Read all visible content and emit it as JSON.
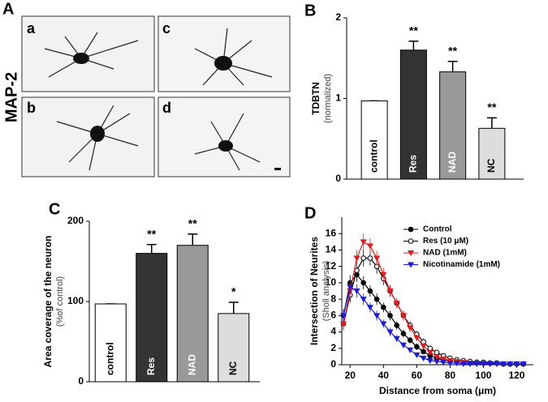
{
  "figure": {
    "panel_a": {
      "label": "A",
      "stain": "MAP-2",
      "images": [
        "a",
        "b",
        "c",
        "d"
      ]
    }
  },
  "chart_data": [
    {
      "type": "bar",
      "panel": "B",
      "y_label": "TDBTN",
      "y_sublabel": "(normalized)",
      "categories": [
        "control",
        "Res",
        "NAD",
        "NC"
      ],
      "values": [
        0.97,
        1.6,
        1.33,
        0.63
      ],
      "errors": [
        0,
        0.11,
        0.13,
        0.13
      ],
      "annotations": [
        null,
        "**",
        "**",
        "**"
      ],
      "colors": [
        "#ffffff",
        "#333333",
        "#999999",
        "#dddddd"
      ],
      "ylim": [
        0,
        2
      ],
      "yticks": [
        0,
        1,
        2
      ]
    },
    {
      "type": "bar",
      "panel": "C",
      "y_label": "Area coverage of the neuron",
      "y_sublabel": "(%of control)",
      "categories": [
        "control",
        "Res",
        "NAD",
        "NC"
      ],
      "values": [
        97,
        160,
        170,
        85
      ],
      "errors": [
        0,
        11,
        14,
        14
      ],
      "annotations": [
        null,
        "**",
        "**",
        "*"
      ],
      "colors": [
        "#ffffff",
        "#333333",
        "#999999",
        "#dddddd"
      ],
      "ylim": [
        0,
        200
      ],
      "yticks": [
        0,
        100,
        200
      ]
    },
    {
      "type": "line",
      "panel": "D",
      "y_label": "Intersection of Neurites",
      "y_sublabel": "(Sholl analysis)",
      "x_label": "Distance from soma (μm)",
      "x": [
        16,
        20,
        24,
        28,
        32,
        36,
        40,
        44,
        48,
        52,
        56,
        60,
        64,
        68,
        72,
        76,
        80,
        84,
        88,
        92,
        96,
        100,
        104,
        108,
        112,
        116,
        120,
        124
      ],
      "series": [
        {
          "name": "Control",
          "color": "#000000",
          "marker": "circle",
          "values": [
            6,
            10,
            11,
            10,
            9,
            8,
            7,
            6,
            4.8,
            3.8,
            3,
            2.2,
            1.6,
            1.1,
            0.8,
            0.6,
            0.5,
            0.4,
            0.3,
            0.3,
            0.3,
            0.2,
            0.2,
            0.2,
            0.1,
            0.1,
            0.1,
            0.1
          ],
          "errors": [
            0.8,
            0.9,
            0.9,
            0.8,
            0.7,
            0.7,
            0.6,
            0.6,
            0.5,
            0.5,
            0.4,
            0.4,
            0.3,
            0.3,
            0.2,
            0.2,
            0.2,
            0.2,
            0.1,
            0.1,
            0.1,
            0.1,
            0.1,
            0.1,
            0.1,
            0.1,
            0.1,
            0.1
          ]
        },
        {
          "name": "Res (10 μM)",
          "color": "#000000",
          "marker": "open-circle",
          "values": [
            5,
            8.5,
            11.5,
            13,
            13,
            12,
            10.5,
            9,
            7.5,
            6,
            4.8,
            3.7,
            2.8,
            2,
            1.5,
            1.1,
            0.8,
            0.6,
            0.5,
            0.4,
            0.3,
            0.3,
            0.2,
            0.2,
            0.1,
            0.1,
            0.1,
            0.1
          ],
          "errors": [
            0.8,
            0.9,
            1,
            1,
            0.9,
            0.9,
            0.8,
            0.7,
            0.6,
            0.6,
            0.5,
            0.4,
            0.4,
            0.3,
            0.3,
            0.2,
            0.2,
            0.2,
            0.1,
            0.1,
            0.1,
            0.1,
            0.1,
            0.1,
            0.1,
            0.1,
            0.1,
            0.1
          ]
        },
        {
          "name": "NAD (1mM)",
          "color": "#e8191a",
          "marker": "triangle-down",
          "values": [
            5,
            9,
            13,
            15,
            14.5,
            13,
            11,
            9,
            7.5,
            6,
            4.5,
            3.3,
            2.3,
            1.5,
            1,
            0.7,
            0.5,
            0.4,
            0.3,
            0.2,
            0.2,
            0.2,
            0.1,
            0.1,
            0.1,
            0.1,
            0.1,
            0.1
          ],
          "errors": [
            0.8,
            0.9,
            1,
            1,
            0.9,
            0.9,
            0.8,
            0.7,
            0.6,
            0.5,
            0.5,
            0.4,
            0.3,
            0.3,
            0.2,
            0.2,
            0.2,
            0.1,
            0.1,
            0.1,
            0.1,
            0.1,
            0.1,
            0.1,
            0.1,
            0.1,
            0.1,
            0.1
          ]
        },
        {
          "name": "Nicotinamide (1mM)",
          "color": "#1a1ae0",
          "marker": "triangle-down",
          "values": [
            6,
            9.5,
            9,
            8,
            7,
            6,
            5,
            4,
            3.2,
            2.4,
            1.8,
            1.2,
            0.8,
            0.5,
            0.4,
            0.3,
            0.2,
            0.2,
            0.1,
            0.1,
            0.1,
            0.1,
            0.1,
            0.1,
            0.1,
            0.1,
            0.1,
            0.1
          ],
          "errors": [
            0.8,
            0.8,
            0.8,
            0.7,
            0.6,
            0.6,
            0.5,
            0.5,
            0.4,
            0.4,
            0.3,
            0.3,
            0.2,
            0.2,
            0.2,
            0.1,
            0.1,
            0.1,
            0.1,
            0.1,
            0.1,
            0.1,
            0.1,
            0.1,
            0.1,
            0.1,
            0.1,
            0.1
          ]
        }
      ],
      "xlim": [
        15,
        130
      ],
      "xticks": [
        20,
        40,
        60,
        80,
        100,
        120
      ],
      "ylim": [
        0,
        18
      ],
      "yticks": [
        0,
        2,
        4,
        6,
        8,
        10,
        12,
        14,
        16
      ]
    }
  ]
}
